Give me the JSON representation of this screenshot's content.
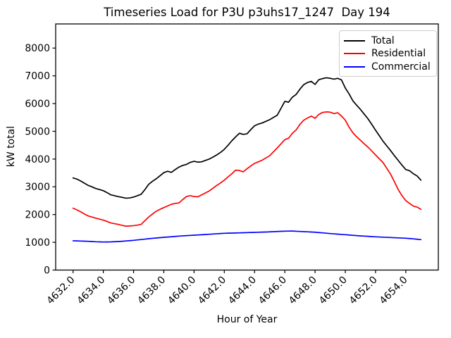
{
  "chart_data": {
    "type": "line",
    "title": "Timeseries Load for P3U p3uhs17_1247  Day 194",
    "xlabel": "Hour of Year",
    "ylabel": "kW total",
    "xlim": [
      4630.85,
      4656.15
    ],
    "ylim": [
      0,
      8870
    ],
    "grid": false,
    "background": "#ffffff",
    "xticks": [
      4632,
      4634,
      4636,
      4638,
      4640,
      4642,
      4644,
      4646,
      4648,
      4650,
      4652,
      4654
    ],
    "xtick_labels": [
      "4632.0",
      "4634.0",
      "4636.0",
      "4638.0",
      "4640.0",
      "4642.0",
      "4644.0",
      "4646.0",
      "4648.0",
      "4650.0",
      "4652.0",
      "4654.0"
    ],
    "yticks": [
      0,
      1000,
      2000,
      3000,
      4000,
      5000,
      6000,
      7000,
      8000
    ],
    "ytick_labels": [
      "0",
      "1000",
      "2000",
      "3000",
      "4000",
      "5000",
      "6000",
      "7000",
      "8000"
    ],
    "x": {
      "start": 4632.0,
      "step": 0.25,
      "end": 4655.0,
      "count": 93
    },
    "series": [
      {
        "name": "Total",
        "color": "#000000",
        "values": [
          3320,
          3280,
          3210,
          3130,
          3050,
          3000,
          2940,
          2900,
          2860,
          2790,
          2710,
          2680,
          2645,
          2620,
          2590,
          2600,
          2630,
          2680,
          2730,
          2900,
          3090,
          3200,
          3290,
          3400,
          3510,
          3560,
          3520,
          3620,
          3710,
          3770,
          3810,
          3880,
          3920,
          3890,
          3900,
          3950,
          4000,
          4070,
          4150,
          4240,
          4350,
          4500,
          4660,
          4800,
          4930,
          4890,
          4910,
          5060,
          5200,
          5260,
          5300,
          5360,
          5420,
          5500,
          5580,
          5830,
          6080,
          6050,
          6230,
          6330,
          6520,
          6680,
          6760,
          6800,
          6690,
          6860,
          6900,
          6930,
          6910,
          6880,
          6910,
          6850,
          6560,
          6350,
          6100,
          5940,
          5790,
          5620,
          5450,
          5250,
          5040,
          4840,
          4640,
          4470,
          4300,
          4120,
          3950,
          3780,
          3620,
          3580,
          3470,
          3390,
          3240
        ]
      },
      {
        "name": "Residential",
        "color": "#ff0000",
        "values": [
          2230,
          2170,
          2100,
          2020,
          1950,
          1910,
          1870,
          1835,
          1800,
          1750,
          1700,
          1670,
          1645,
          1610,
          1580,
          1590,
          1600,
          1620,
          1645,
          1780,
          1910,
          2020,
          2120,
          2190,
          2250,
          2310,
          2370,
          2400,
          2420,
          2540,
          2650,
          2680,
          2650,
          2640,
          2710,
          2780,
          2850,
          2950,
          3050,
          3140,
          3240,
          3360,
          3470,
          3600,
          3590,
          3540,
          3650,
          3750,
          3845,
          3900,
          3960,
          4040,
          4120,
          4260,
          4400,
          4550,
          4700,
          4750,
          4930,
          5050,
          5250,
          5400,
          5480,
          5550,
          5470,
          5610,
          5680,
          5700,
          5690,
          5640,
          5670,
          5550,
          5400,
          5150,
          4950,
          4800,
          4680,
          4550,
          4430,
          4290,
          4150,
          4010,
          3870,
          3660,
          3450,
          3180,
          2900,
          2680,
          2500,
          2400,
          2305,
          2270,
          2190
        ]
      },
      {
        "name": "Commercial",
        "color": "#0000ff",
        "values": [
          1055,
          1050,
          1045,
          1040,
          1036,
          1028,
          1020,
          1015,
          1010,
          1012,
          1015,
          1021,
          1028,
          1038,
          1048,
          1060,
          1071,
          1086,
          1100,
          1115,
          1130,
          1143,
          1155,
          1168,
          1180,
          1190,
          1200,
          1212,
          1223,
          1232,
          1240,
          1248,
          1256,
          1264,
          1272,
          1281,
          1290,
          1299,
          1308,
          1317,
          1325,
          1329,
          1333,
          1336,
          1340,
          1345,
          1350,
          1354,
          1358,
          1362,
          1367,
          1371,
          1376,
          1383,
          1390,
          1396,
          1401,
          1404,
          1405,
          1398,
          1391,
          1384,
          1378,
          1371,
          1365,
          1352,
          1340,
          1327,
          1315,
          1305,
          1295,
          1284,
          1274,
          1263,
          1252,
          1241,
          1231,
          1223,
          1215,
          1206,
          1198,
          1191,
          1185,
          1178,
          1172,
          1166,
          1160,
          1153,
          1147,
          1136,
          1125,
          1110,
          1096
        ]
      }
    ],
    "legend": {
      "position": "upper right",
      "entries": [
        "Total",
        "Residential",
        "Commercial"
      ]
    }
  }
}
